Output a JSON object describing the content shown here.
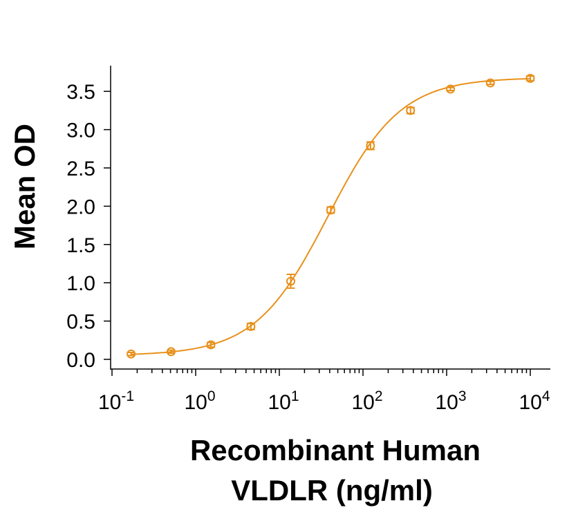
{
  "chart_data": {
    "type": "scatter",
    "title": "",
    "xlabel_line1": "Recombinant Human",
    "xlabel_line2": "VLDLR (ng/ml)",
    "ylabel": "Mean OD",
    "x_scale": "log",
    "xlim": [
      0.1,
      10000
    ],
    "ylim": [
      0,
      3.7
    ],
    "x_tick_labels": [
      {
        "base": "10",
        "exp": "-1"
      },
      {
        "base": "10",
        "exp": "0"
      },
      {
        "base": "10",
        "exp": "1"
      },
      {
        "base": "10",
        "exp": "2"
      },
      {
        "base": "10",
        "exp": "3"
      },
      {
        "base": "10",
        "exp": "4"
      }
    ],
    "y_tick_labels": [
      "0.0",
      "0.5",
      "1.0",
      "1.5",
      "2.0",
      "2.5",
      "3.0",
      "3.5"
    ],
    "grid": false,
    "color": "#E8901A",
    "fit_curve": "sigmoidal",
    "series": [
      {
        "x": [
          0.169,
          0.508,
          1.52,
          4.57,
          13.7,
          41.2,
          123,
          370,
          1111,
          3333,
          10000
        ],
        "y": [
          0.07,
          0.1,
          0.19,
          0.43,
          1.02,
          1.95,
          2.79,
          3.25,
          3.53,
          3.61,
          3.67
        ],
        "error": [
          0.02,
          0.02,
          0.03,
          0.04,
          0.09,
          0.04,
          0.05,
          0.04,
          0.02,
          0.02,
          0.03
        ]
      }
    ]
  }
}
